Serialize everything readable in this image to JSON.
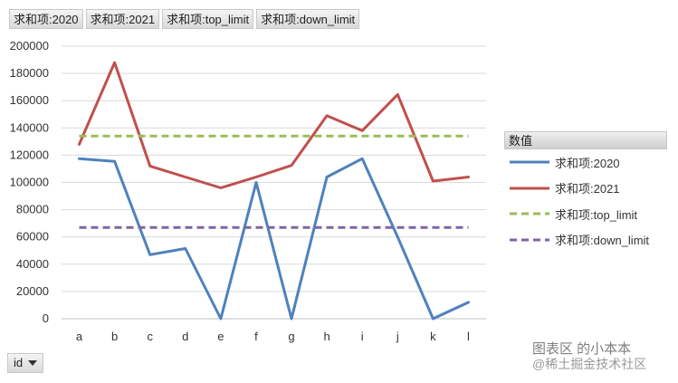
{
  "field_buttons": [
    "求和项:2020",
    "求和项:2021",
    "求和项:top_limit",
    "求和项:down_limit"
  ],
  "row_field": "id",
  "legend_title": "数值",
  "watermark": {
    "line1": "图表区 的小本本",
    "line2": "@稀土掘金技术社区"
  },
  "chart_data": {
    "type": "line",
    "categories": [
      "a",
      "b",
      "c",
      "d",
      "e",
      "f",
      "g",
      "h",
      "i",
      "j",
      "k",
      "l"
    ],
    "ylim": [
      0,
      200000
    ],
    "yticks": [
      0,
      20000,
      40000,
      60000,
      80000,
      100000,
      120000,
      140000,
      160000,
      180000,
      200000
    ],
    "grid": true,
    "legend_position": "right",
    "series": [
      {
        "name": "求和项:2020",
        "color": "#4f81bd",
        "dashed": false,
        "values": [
          117500,
          115500,
          47000,
          51500,
          0,
          100000,
          0,
          104000,
          117500,
          60000,
          0,
          12000
        ]
      },
      {
        "name": "求和项:2021",
        "color": "#c0504d",
        "dashed": false,
        "values": [
          128000,
          188000,
          112000,
          104000,
          96000,
          104000,
          112500,
          149000,
          138000,
          164500,
          101000,
          104000
        ]
      },
      {
        "name": "求和项:top_limit",
        "color": "#9bbb59",
        "dashed": true,
        "values": [
          134000,
          134000,
          134000,
          134000,
          134000,
          134000,
          134000,
          134000,
          134000,
          134000,
          134000,
          134000
        ]
      },
      {
        "name": "求和项:down_limit",
        "color": "#8064a2",
        "dashed": true,
        "values": [
          67000,
          67000,
          67000,
          67000,
          67000,
          67000,
          67000,
          67000,
          67000,
          67000,
          67000,
          67000
        ]
      }
    ]
  }
}
